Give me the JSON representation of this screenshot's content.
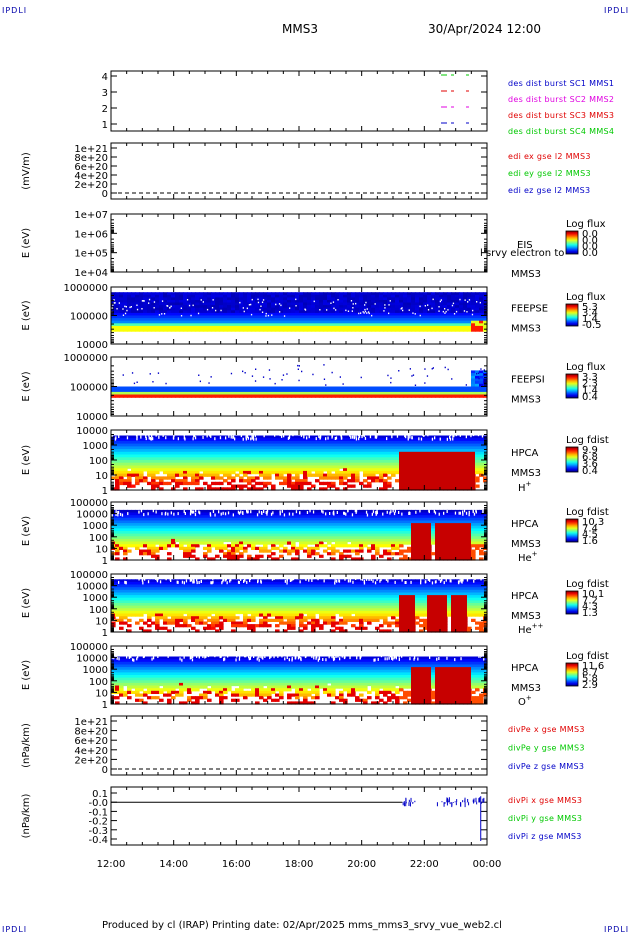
{
  "header": {
    "mission": "MMS3",
    "datetime": "30/Apr/2024 12:00",
    "corner_mark": "IPDLI"
  },
  "footer": {
    "text": "Produced by cl (IRAP)   Printing date: 02/Apr/2025   mms_mms3_srvy_vue_web2.cl"
  },
  "time_axis": {
    "labels": [
      "12:00",
      "14:00",
      "16:00",
      "18:00",
      "20:00",
      "22:00",
      "00:00"
    ],
    "start_hour": 12,
    "end_hour": 24
  },
  "colors": {
    "blue": "#0000c8",
    "magenta": "#e000e0",
    "red": "#e00000",
    "green": "#00c800"
  },
  "chart_data": [
    {
      "type": "line",
      "ylim": [
        0.5,
        4.5
      ],
      "ytick_labels": [
        "1",
        "2",
        "3",
        "4"
      ],
      "ylabel": "",
      "legend": [
        {
          "text": "des dist burst SC1 MMS1",
          "color": "#0000c8"
        },
        {
          "text": "des dist burst SC2 MMS2",
          "color": "#e000e0"
        },
        {
          "text": "des dist burst SC3 MMS3",
          "color": "#e00000"
        },
        {
          "text": "des dist burst SC4 MMS4",
          "color": "#00c800"
        }
      ]
    },
    {
      "type": "line",
      "ylabel": "(mV/m)",
      "ytick_labels": [
        "1e+21",
        "8e+20",
        "6e+20",
        "4e+20",
        "2e+20",
        "0"
      ],
      "legend": [
        {
          "text": "edi ex gse l2 MMS3",
          "color": "#e00000"
        },
        {
          "text": "edi ey gse l2 MMS3",
          "color": "#00c800"
        },
        {
          "text": "edi ez gse l2 MMS3",
          "color": "#0000c8"
        }
      ]
    },
    {
      "type": "heatmap",
      "ylabel": "E (eV)",
      "ytick_labels": [
        "1e+07",
        "1e+06",
        "1e+05",
        "1e+04"
      ],
      "instrument": [
        "EIS",
        "MMS3"
      ],
      "overlay_text": "l srvy electron to",
      "colorbar": {
        "title": "Log flux",
        "labels": [
          "0.0",
          "0.0",
          "0.0",
          "0.0"
        ]
      }
    },
    {
      "type": "heatmap",
      "ylabel": "E (eV)",
      "ytick_labels": [
        "1000000",
        "100000",
        "10000"
      ],
      "instrument": [
        "FEEPSE",
        "MMS3"
      ],
      "colorbar": {
        "title": "Log flux",
        "labels": [
          "5.3",
          "3.4",
          "1.4",
          "-0.5"
        ]
      }
    },
    {
      "type": "heatmap",
      "ylabel": "E (eV)",
      "ytick_labels": [
        "1000000",
        "100000",
        "10000"
      ],
      "instrument": [
        "FEEPSI",
        "MMS3"
      ],
      "colorbar": {
        "title": "Log flux",
        "labels": [
          "3.3",
          "2.3",
          "1.4",
          "0.4"
        ]
      }
    },
    {
      "type": "heatmap",
      "ylabel": "E (eV)",
      "ytick_labels": [
        "10000",
        "1000",
        "100",
        "10",
        "1"
      ],
      "instrument": [
        "HPCA",
        "MMS3"
      ],
      "species": "H",
      "species_sup": "+",
      "colorbar": {
        "title": "Log fdist",
        "labels": [
          "9.9",
          "6.8",
          "3.6",
          "0.4"
        ]
      }
    },
    {
      "type": "heatmap",
      "ylabel": "E (eV)",
      "ytick_labels": [
        "100000",
        "10000",
        "1000",
        "100",
        "10",
        "1"
      ],
      "instrument": [
        "HPCA",
        "MMS3"
      ],
      "species": "He",
      "species_sup": "+",
      "colorbar": {
        "title": "Log fdist",
        "labels": [
          "10.3",
          "7.4",
          "4.5",
          "1.6"
        ]
      }
    },
    {
      "type": "heatmap",
      "ylabel": "E (eV)",
      "ytick_labels": [
        "100000",
        "10000",
        "1000",
        "100",
        "10",
        "1"
      ],
      "instrument": [
        "HPCA",
        "MMS3"
      ],
      "species": "He",
      "species_sup": "++",
      "colorbar": {
        "title": "Log fdist",
        "labels": [
          "10.1",
          "7.2",
          "4.3",
          "1.3"
        ]
      }
    },
    {
      "type": "heatmap",
      "ylabel": "E (eV)",
      "ytick_labels": [
        "100000",
        "10000",
        "1000",
        "100",
        "10",
        "1"
      ],
      "instrument": [
        "HPCA",
        "MMS3"
      ],
      "species": "O",
      "species_sup": "+",
      "colorbar": {
        "title": "Log fdist",
        "labels": [
          "11.6",
          "8.7",
          "5.8",
          "2.9"
        ]
      }
    },
    {
      "type": "line",
      "ylabel": "(nPa/km)",
      "ytick_labels": [
        "1e+21",
        "8e+20",
        "6e+20",
        "4e+20",
        "2e+20",
        "0"
      ],
      "legend": [
        {
          "text": "divPe x gse MMS3",
          "color": "#e00000"
        },
        {
          "text": "divPe y gse MMS3",
          "color": "#00c800"
        },
        {
          "text": "divPe z gse MMS3",
          "color": "#0000c8"
        }
      ]
    },
    {
      "type": "line",
      "ylabel": "(nPa/km)",
      "ylim": [
        -0.45,
        0.15
      ],
      "ytick_labels": [
        "0.1",
        "-0.0",
        "-0.1",
        "-0.2",
        "-0.3",
        "-0.4"
      ],
      "legend": [
        {
          "text": "divPi x gse MMS3",
          "color": "#e00000"
        },
        {
          "text": "divPi y gse MMS3",
          "color": "#00c800"
        },
        {
          "text": "divPi z gse MMS3",
          "color": "#0000c8"
        }
      ]
    }
  ]
}
